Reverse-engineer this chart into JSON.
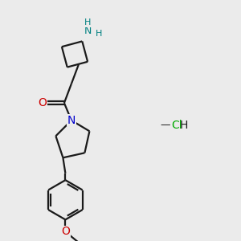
{
  "background_color": "#ebebeb",
  "bond_color": "#1a1a1a",
  "nitrogen_color": "#0000cc",
  "oxygen_color": "#cc0000",
  "nh_color": "#008080",
  "h_color": "#008080",
  "cl_color": "#00aa00",
  "line_width": 1.6,
  "fig_width": 3.0,
  "fig_height": 3.0,
  "dpi": 100,
  "xlim": [
    0,
    10
  ],
  "ylim": [
    0,
    10
  ]
}
